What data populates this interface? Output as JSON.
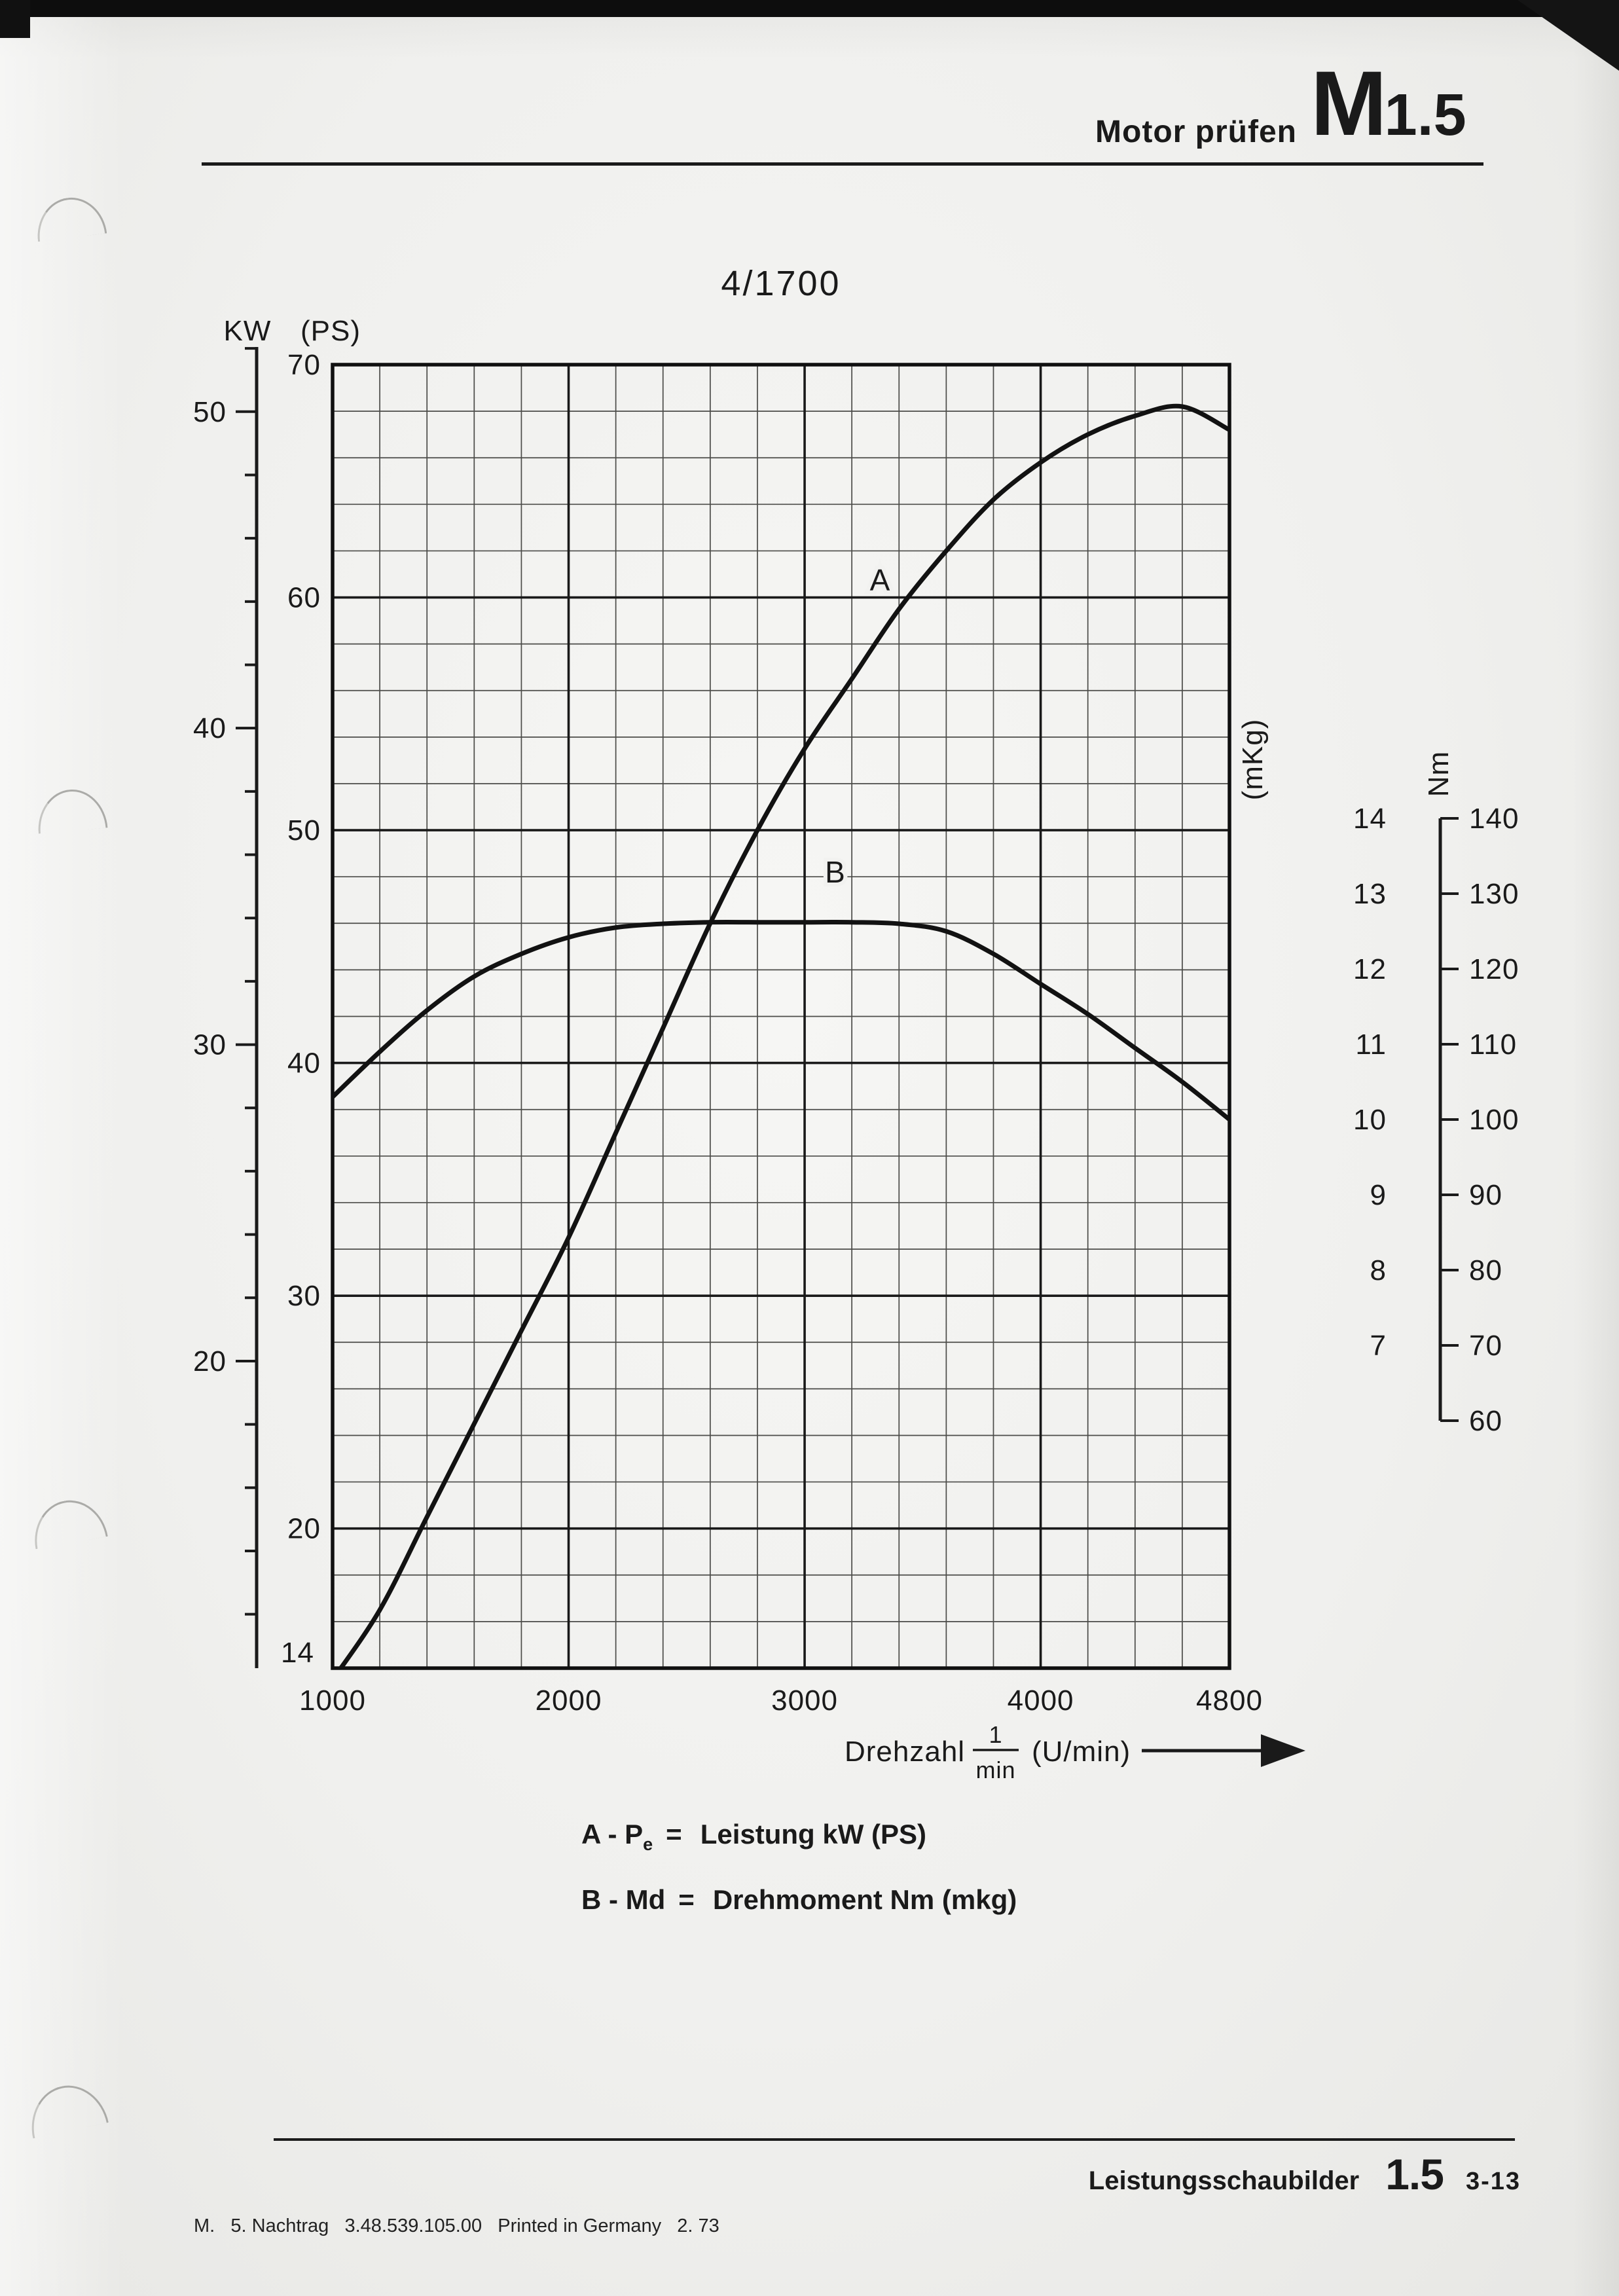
{
  "header": {
    "title": "Motor prüfen",
    "code_letter": "M",
    "code_number": "1.5"
  },
  "footer": {
    "right": {
      "label": "Leistungsschaubilder",
      "section": "1.5",
      "page": "3-13"
    },
    "left": "M.   5. Nachtrag   3.48.539.105.00   Printed in Germany   2. 73"
  },
  "chart_data": {
    "type": "line",
    "title": "4/1700",
    "grid": true,
    "x": {
      "name": "Drehzahl",
      "frac_num": "1",
      "frac_den": "min",
      "unit": "(U/min)",
      "range": [
        1000,
        4800
      ],
      "ticks": [
        1000,
        2000,
        3000,
        4000,
        4800
      ],
      "minor_step": 200
    },
    "y_left": {
      "unit_primary": "KW",
      "unit_secondary": "(PS)",
      "ps_range": [
        14,
        70
      ],
      "ps_minor_step": 2,
      "ps_labels": [
        70,
        60,
        50,
        40,
        30,
        20
      ],
      "ps_bottom": 14,
      "kw_labels": [
        50,
        40,
        30,
        20
      ],
      "kw_minor_step": 2,
      "kw_tick_range": [
        12,
        52
      ],
      "kw_per_ps": 0.7355
    },
    "y_right": {
      "mkg_unit": "(mKg)",
      "mkg_labels": [
        14,
        13,
        12,
        11,
        10,
        9,
        8,
        7
      ],
      "mkg_display_range": [
        7,
        14
      ],
      "nm_unit": "Nm",
      "nm_labels": [
        140,
        130,
        120,
        110,
        100,
        90,
        80,
        70,
        60
      ],
      "nm_display_range": [
        60,
        140
      ]
    },
    "series": [
      {
        "id": "A",
        "label": "A",
        "name": "Leistung (power)",
        "unit": "PS",
        "label_at": [
          3320,
          60.3
        ],
        "points": [
          [
            1000,
            13.5
          ],
          [
            1200,
            16.5
          ],
          [
            1400,
            20.5
          ],
          [
            1600,
            24.5
          ],
          [
            1800,
            28.5
          ],
          [
            2000,
            32.5
          ],
          [
            2200,
            37.0
          ],
          [
            2400,
            41.5
          ],
          [
            2600,
            46.0
          ],
          [
            2800,
            50.0
          ],
          [
            3000,
            53.5
          ],
          [
            3200,
            56.5
          ],
          [
            3400,
            59.5
          ],
          [
            3600,
            62.0
          ],
          [
            3800,
            64.2
          ],
          [
            4000,
            65.8
          ],
          [
            4200,
            67.0
          ],
          [
            4400,
            67.8
          ],
          [
            4600,
            68.2
          ],
          [
            4800,
            67.2
          ]
        ]
      },
      {
        "id": "B",
        "label": "B",
        "name": "Drehmoment (torque)",
        "unit": "mkg",
        "label_at": [
          3130,
          13.15
        ],
        "points": [
          [
            1000,
            10.3
          ],
          [
            1200,
            10.9
          ],
          [
            1400,
            11.45
          ],
          [
            1600,
            11.9
          ],
          [
            1800,
            12.2
          ],
          [
            2000,
            12.42
          ],
          [
            2200,
            12.55
          ],
          [
            2400,
            12.6
          ],
          [
            2600,
            12.62
          ],
          [
            2800,
            12.62
          ],
          [
            3000,
            12.62
          ],
          [
            3200,
            12.62
          ],
          [
            3400,
            12.6
          ],
          [
            3600,
            12.5
          ],
          [
            3800,
            12.2
          ],
          [
            4000,
            11.8
          ],
          [
            4200,
            11.4
          ],
          [
            4400,
            10.95
          ],
          [
            4600,
            10.5
          ],
          [
            4800,
            10.0
          ]
        ],
        "points_Nm_approx": [
          101,
          107,
          112,
          117,
          120,
          122,
          123,
          124,
          124,
          124,
          124,
          124,
          124,
          123,
          120,
          116,
          112,
          107,
          103,
          98
        ]
      }
    ],
    "legend": [
      {
        "prefix": "A - P",
        "sub": "e",
        "eq": "=",
        "text": "Leistung kW (PS)"
      },
      {
        "prefix": "B - Md",
        "sub": "",
        "eq": "=",
        "text": "Drehmoment Nm (mkg)"
      }
    ]
  }
}
